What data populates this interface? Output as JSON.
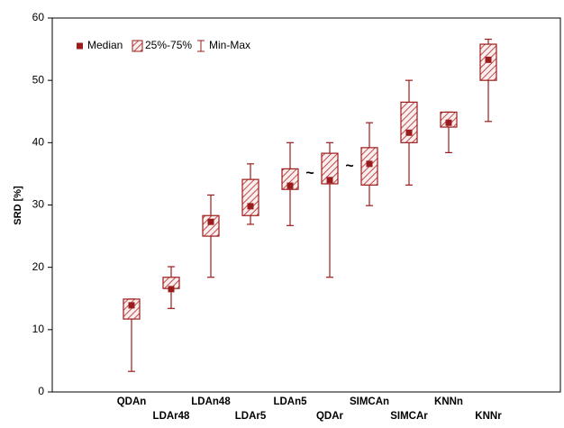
{
  "chart_data": {
    "type": "box",
    "y_label": "SRD [%]",
    "categories": [
      "QDAn",
      "LDAr48",
      "LDAn48",
      "LDAr5",
      "LDAn5",
      "QDAr",
      "SIMCAn",
      "SIMCAr",
      "KNNn",
      "KNNr"
    ],
    "min": [
      3.3,
      13.4,
      18.4,
      26.9,
      26.7,
      18.4,
      29.9,
      33.2,
      38.4,
      43.4
    ],
    "q1": [
      11.7,
      16.6,
      25.0,
      28.3,
      32.5,
      33.4,
      33.2,
      40.0,
      42.5,
      50.0
    ],
    "median": [
      13.9,
      16.5,
      27.3,
      29.8,
      33.1,
      34.0,
      36.6,
      41.6,
      43.2,
      53.3
    ],
    "q3": [
      14.9,
      18.4,
      28.3,
      34.1,
      35.8,
      38.3,
      39.2,
      46.5,
      44.9,
      55.8
    ],
    "max": [
      14.9,
      20.1,
      31.6,
      36.6,
      40.0,
      40.0,
      43.2,
      50.0,
      44.9,
      56.6
    ],
    "color": "#9b1c1c",
    "ylim": [
      0,
      60
    ],
    "yticks": [
      0,
      10,
      20,
      30,
      40,
      50,
      60
    ],
    "legend": [
      "Median",
      "25%-75%",
      "Min-Max"
    ],
    "annotations": [
      "~",
      "~"
    ]
  }
}
